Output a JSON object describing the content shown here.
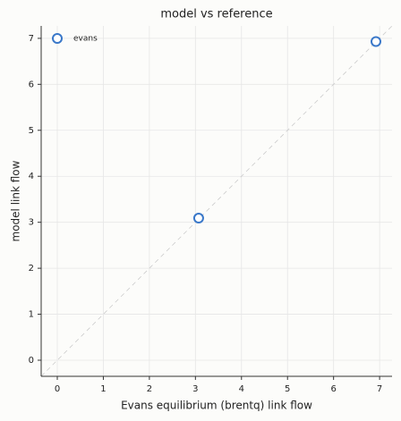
{
  "chart_data": {
    "type": "scatter",
    "title": "model vs reference",
    "x_label": "Evans equilibrium (brentq) link flow",
    "y_label": "model link flow",
    "series": [
      {
        "name": "evans",
        "color": "#3a78c9",
        "x": [
          3.07,
          6.92
        ],
        "values": [
          3.09,
          6.93
        ]
      }
    ],
    "xlim": [
      -0.35,
      7.27
    ],
    "ylim": [
      -0.35,
      7.27
    ],
    "xticks": [
      0,
      1,
      2,
      3,
      4,
      5,
      6,
      7
    ],
    "yticks": [
      0,
      1,
      2,
      3,
      4,
      5,
      6,
      7
    ],
    "grid": true,
    "diagonal": true,
    "legend": "upper left"
  }
}
